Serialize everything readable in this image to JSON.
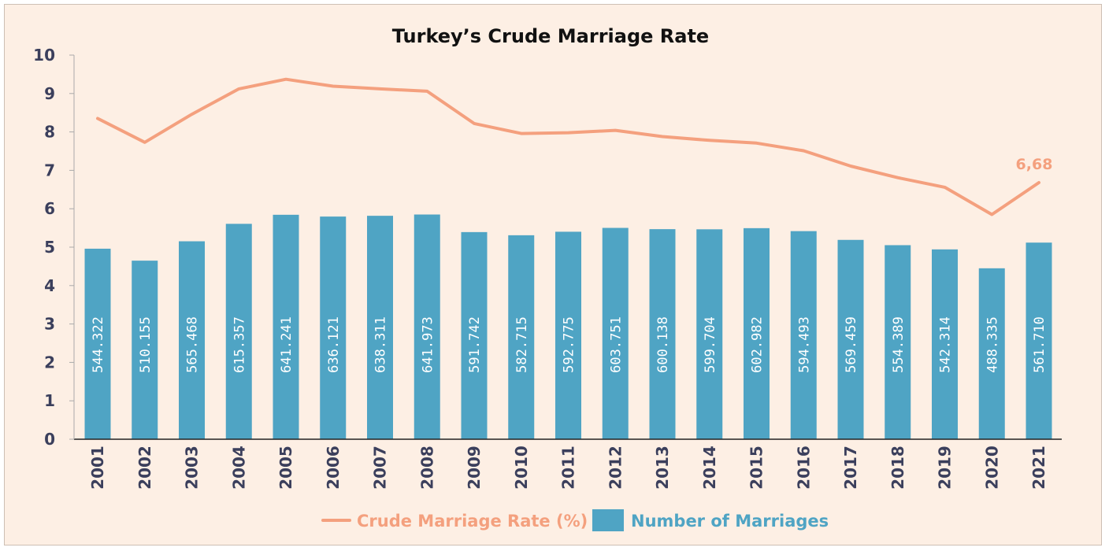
{
  "chart_data": {
    "type": "bar",
    "title": "Turkey’s Crude Marriage Rate",
    "categories": [
      "2001",
      "2002",
      "2003",
      "2004",
      "2005",
      "2006",
      "2007",
      "2008",
      "2009",
      "2010",
      "2011",
      "2012",
      "2013",
      "2014",
      "2015",
      "2016",
      "2017",
      "2018",
      "2019",
      "2020",
      "2021"
    ],
    "ylim": [
      0,
      10
    ],
    "yticks": [
      "0",
      "1",
      "2",
      "3",
      "4",
      "5",
      "6",
      "7",
      "8",
      "9",
      "10"
    ],
    "grid": false,
    "legend_position": "bottom",
    "series": [
      {
        "name": "Number of Marriages",
        "type": "bar",
        "color": "#4fa4c4",
        "values": [
          544322,
          510155,
          565468,
          615357,
          641241,
          636121,
          638311,
          641973,
          591742,
          582715,
          592775,
          603751,
          600138,
          599704,
          602982,
          594493,
          569459,
          554389,
          542314,
          488335,
          561710
        ],
        "labels": [
          "544.322",
          "510.155",
          "565.468",
          "615.357",
          "641.241",
          "636.121",
          "638.311",
          "641.973",
          "591.742",
          "582.715",
          "592.775",
          "603.751",
          "600.138",
          "599.704",
          "602.982",
          "594.493",
          "569.459",
          "554.389",
          "542.314",
          "488.335",
          "561.710"
        ]
      },
      {
        "name": "Crude Marriage Rate (%)",
        "type": "line",
        "color": "#f4a07e",
        "values": [
          8.35,
          7.73,
          8.46,
          9.12,
          9.37,
          9.19,
          9.12,
          9.06,
          8.22,
          7.96,
          7.98,
          8.04,
          7.88,
          7.78,
          7.71,
          7.51,
          7.11,
          6.81,
          6.56,
          5.85,
          6.68
        ]
      }
    ],
    "annotations": [
      {
        "category": "2021",
        "series": "Crude Marriage Rate (%)",
        "text": "6,68"
      }
    ]
  }
}
